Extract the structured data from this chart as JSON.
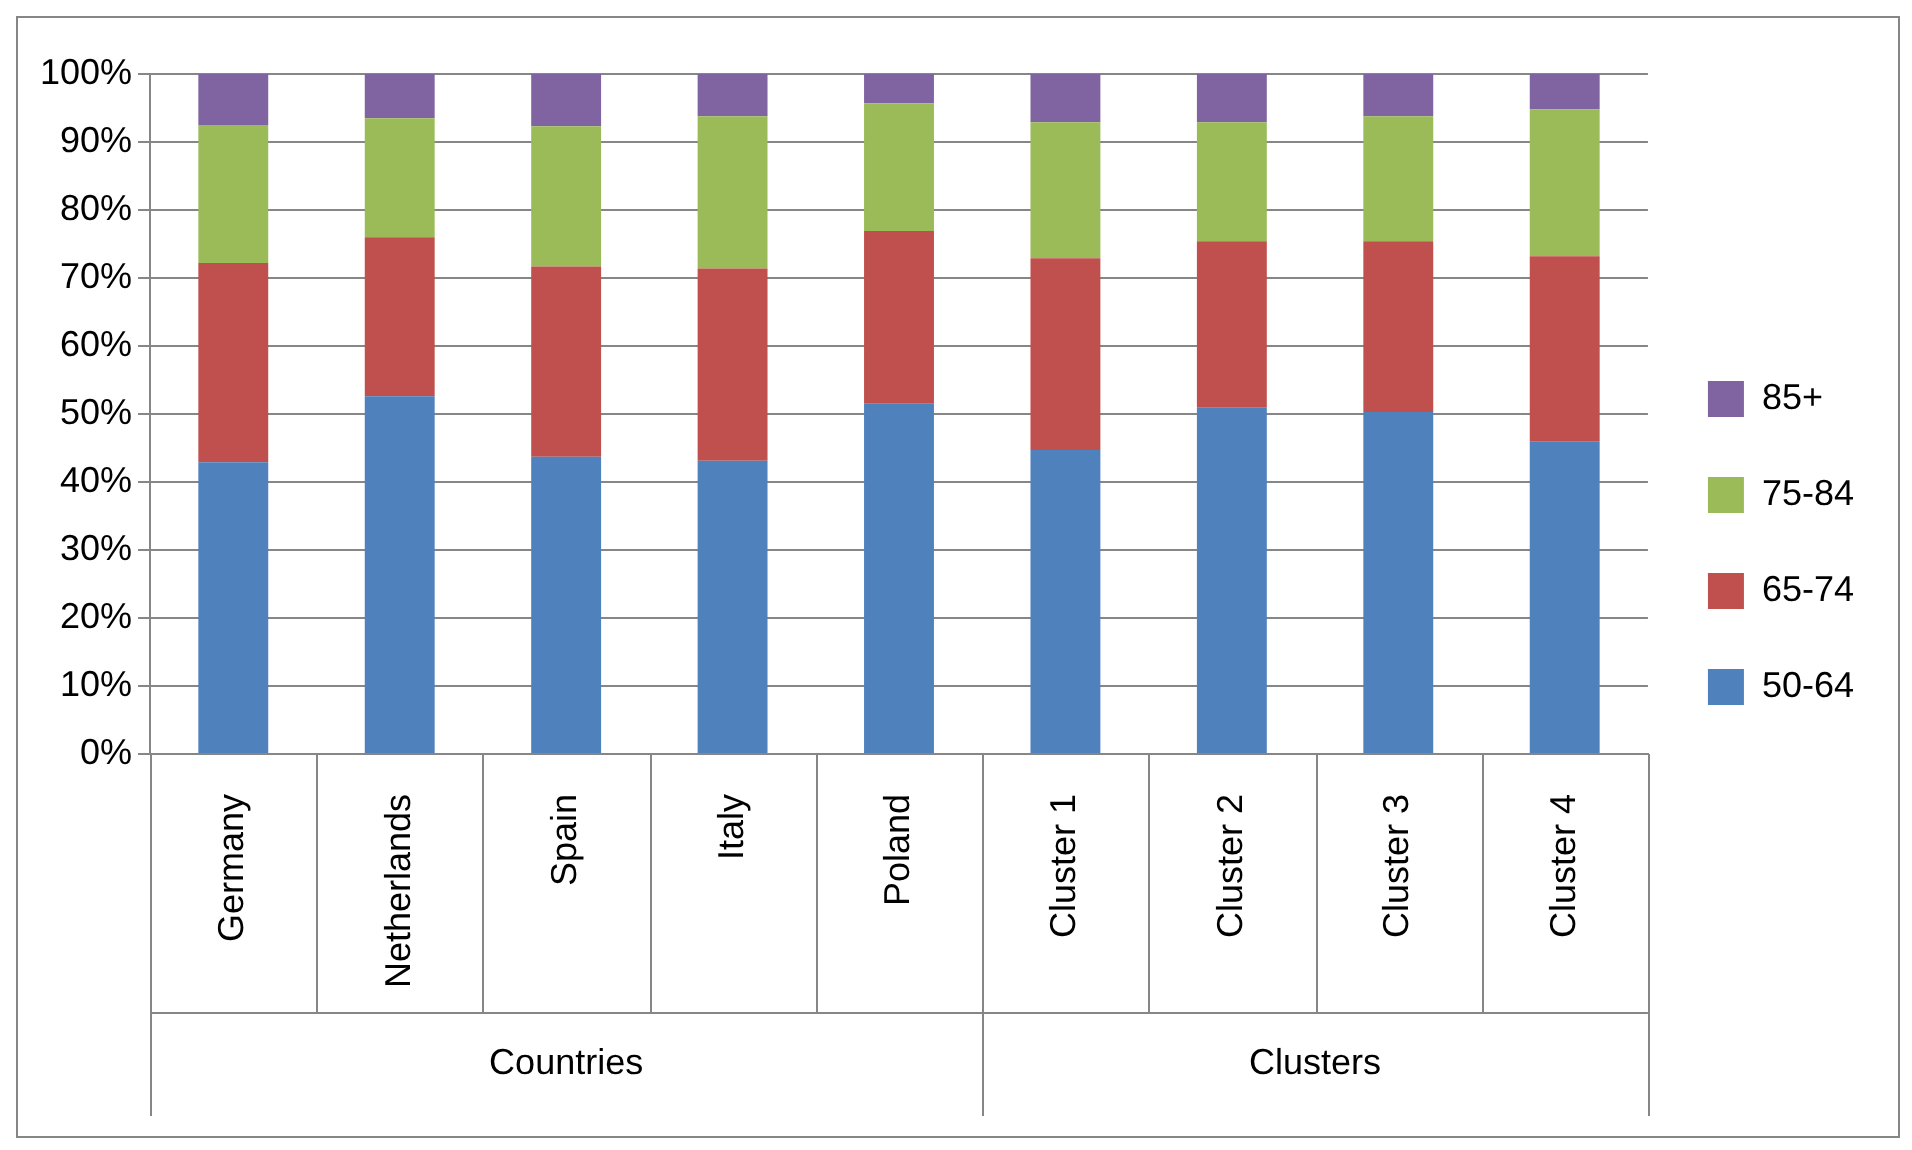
{
  "chart_data": {
    "type": "bar",
    "stacked": true,
    "categories": [
      "Germany",
      "Netherlands",
      "Spain",
      "Italy",
      "Poland",
      "Cluster 1",
      "Cluster 2",
      "Cluster 3",
      "Cluster 4"
    ],
    "series": [
      {
        "name": "50-64",
        "color": "#4f81bd",
        "values": [
          42.9,
          52.6,
          43.7,
          43.1,
          51.5,
          44.7,
          50.9,
          50.3,
          45.9
        ]
      },
      {
        "name": "65-74",
        "color": "#c0504d",
        "values": [
          29.3,
          23.4,
          28.0,
          28.3,
          25.4,
          28.2,
          24.5,
          25.1,
          27.3
        ]
      },
      {
        "name": "75-84",
        "color": "#9bbb59",
        "values": [
          20.3,
          17.5,
          20.6,
          22.4,
          18.8,
          20.0,
          17.5,
          18.4,
          21.6
        ]
      },
      {
        "name": "85+",
        "color": "#8064a2",
        "values": [
          7.5,
          6.5,
          7.7,
          6.2,
          4.3,
          7.1,
          7.1,
          6.2,
          5.2
        ]
      }
    ],
    "ylim": [
      0,
      100
    ],
    "yticks": [
      {
        "value": 0,
        "label": "0%"
      },
      {
        "value": 10,
        "label": "10%"
      },
      {
        "value": 20,
        "label": "20%"
      },
      {
        "value": 30,
        "label": "30%"
      },
      {
        "value": 40,
        "label": "40%"
      },
      {
        "value": 50,
        "label": "50%"
      },
      {
        "value": 60,
        "label": "60%"
      },
      {
        "value": 70,
        "label": "70%"
      },
      {
        "value": 80,
        "label": "80%"
      },
      {
        "value": 90,
        "label": "90%"
      },
      {
        "value": 100,
        "label": "100%"
      }
    ],
    "grid": "y",
    "legend": "right",
    "annotations": [
      "Countries",
      "Clusters"
    ]
  }
}
